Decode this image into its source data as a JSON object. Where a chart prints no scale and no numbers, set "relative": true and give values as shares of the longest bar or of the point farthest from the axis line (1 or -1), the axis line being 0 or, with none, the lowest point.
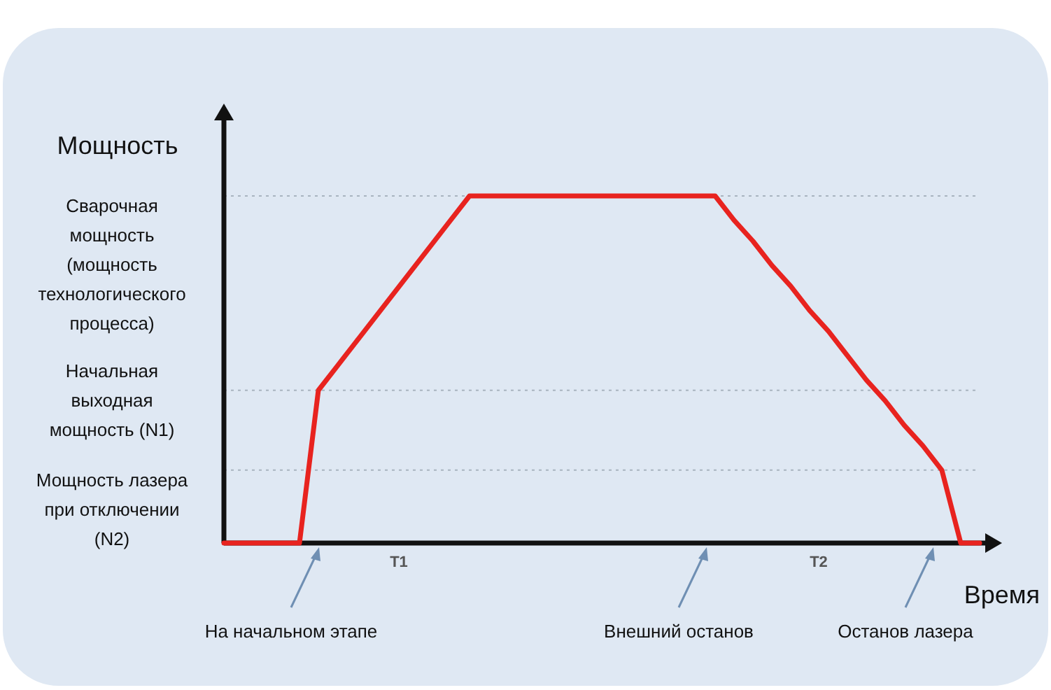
{
  "chart_data": {
    "type": "line",
    "relative": true,
    "ylabel": "Мощность",
    "xlabel": "Время",
    "categories": [
      null,
      null,
      null,
      null,
      null,
      null,
      null,
      null,
      null,
      null,
      null,
      null,
      null,
      null,
      null,
      null,
      null,
      null,
      null,
      null,
      null,
      null,
      null,
      null,
      null,
      null,
      null,
      null,
      null,
      null,
      null,
      null,
      null,
      null,
      null,
      null,
      null,
      null,
      null,
      null,
      null
    ],
    "series": [
      {
        "color": "#e8231f",
        "values": [
          0,
          0,
          0,
          0,
          0,
          0.44,
          0.51,
          0.58,
          0.65,
          0.72,
          0.79,
          0.86,
          0.93,
          1,
          1,
          1,
          1,
          1,
          1,
          1,
          1,
          1,
          1,
          1,
          1,
          1,
          1,
          0.93,
          0.87,
          0.8,
          0.74,
          0.67,
          0.61,
          0.54,
          0.47,
          0.41,
          0.34,
          0.28,
          0.21,
          0,
          0
        ]
      }
    ],
    "annotations": [
      "Сварочная мощность (мощность технологического процесса)",
      "Начальная выходная мощность (N1)",
      "Мощность лазера при отключении (N2)",
      "T1",
      "T2",
      "На начальном этапе",
      "Внешний останов",
      "Останов лазера"
    ],
    "ref_lines": [
      {
        "axis": "y",
        "value": 1,
        "color": "#a9b4c0",
        "line_style": "dotted"
      },
      {
        "axis": "y",
        "value": 0.44,
        "color": "#a9b4c0",
        "line_style": "dotted"
      },
      {
        "axis": "y",
        "value": 0.21,
        "color": "#a9b4c0",
        "line_style": "dotted"
      }
    ],
    "marker": "none",
    "line_style": "solid",
    "legend": false
  }
}
